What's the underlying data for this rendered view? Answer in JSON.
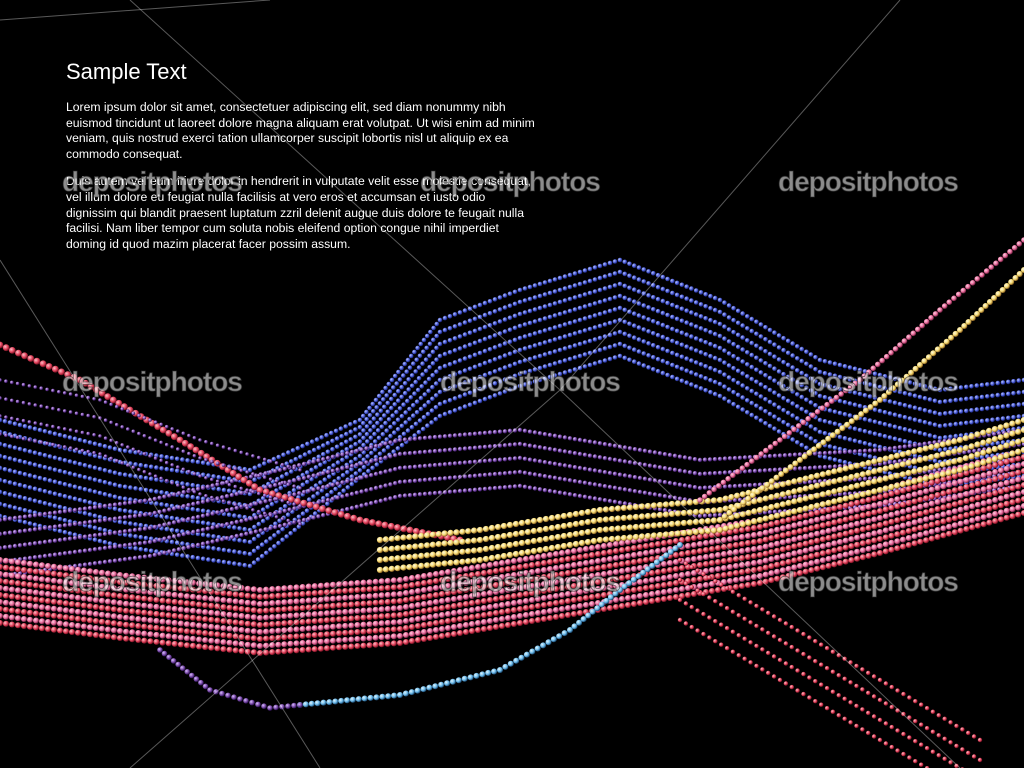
{
  "content": {
    "title": "Sample Text",
    "paragraphs": [
      "Lorem ipsum dolor sit amet, consectetuer adipiscing elit, sed diam nonummy nibh euismod tincidunt ut laoreet dolore magna aliquam erat volutpat. Ut wisi enim ad minim veniam, quis nostrud exerci tation ullamcorper suscipit lobortis nisl ut aliquip ex ea commodo consequat.",
      "Duis autem vel eum iriure dolor in hendrerit in vulputate velit esse molestie consequat, vel illum dolore eu feugiat nulla facilisis at vero eros et accumsan et iusto odio dignissim qui blandit praesent luptatum zzril delenit augue duis dolore te feugait nulla facilisi. Nam liber tempor cum soluta nobis eleifend option congue nihil imperdiet doming id quod mazim placerat facer possim assum."
    ]
  },
  "watermark": {
    "text": "depositphotos"
  },
  "colors": {
    "background": "#000000",
    "bead_blue": "#4a5cd8",
    "bead_red": "#e0405a",
    "bead_pink": "#e86a9a",
    "bead_yellow": "#f4d870",
    "bead_cyan": "#6ab8e8",
    "bead_purple": "#7a4aa8"
  }
}
